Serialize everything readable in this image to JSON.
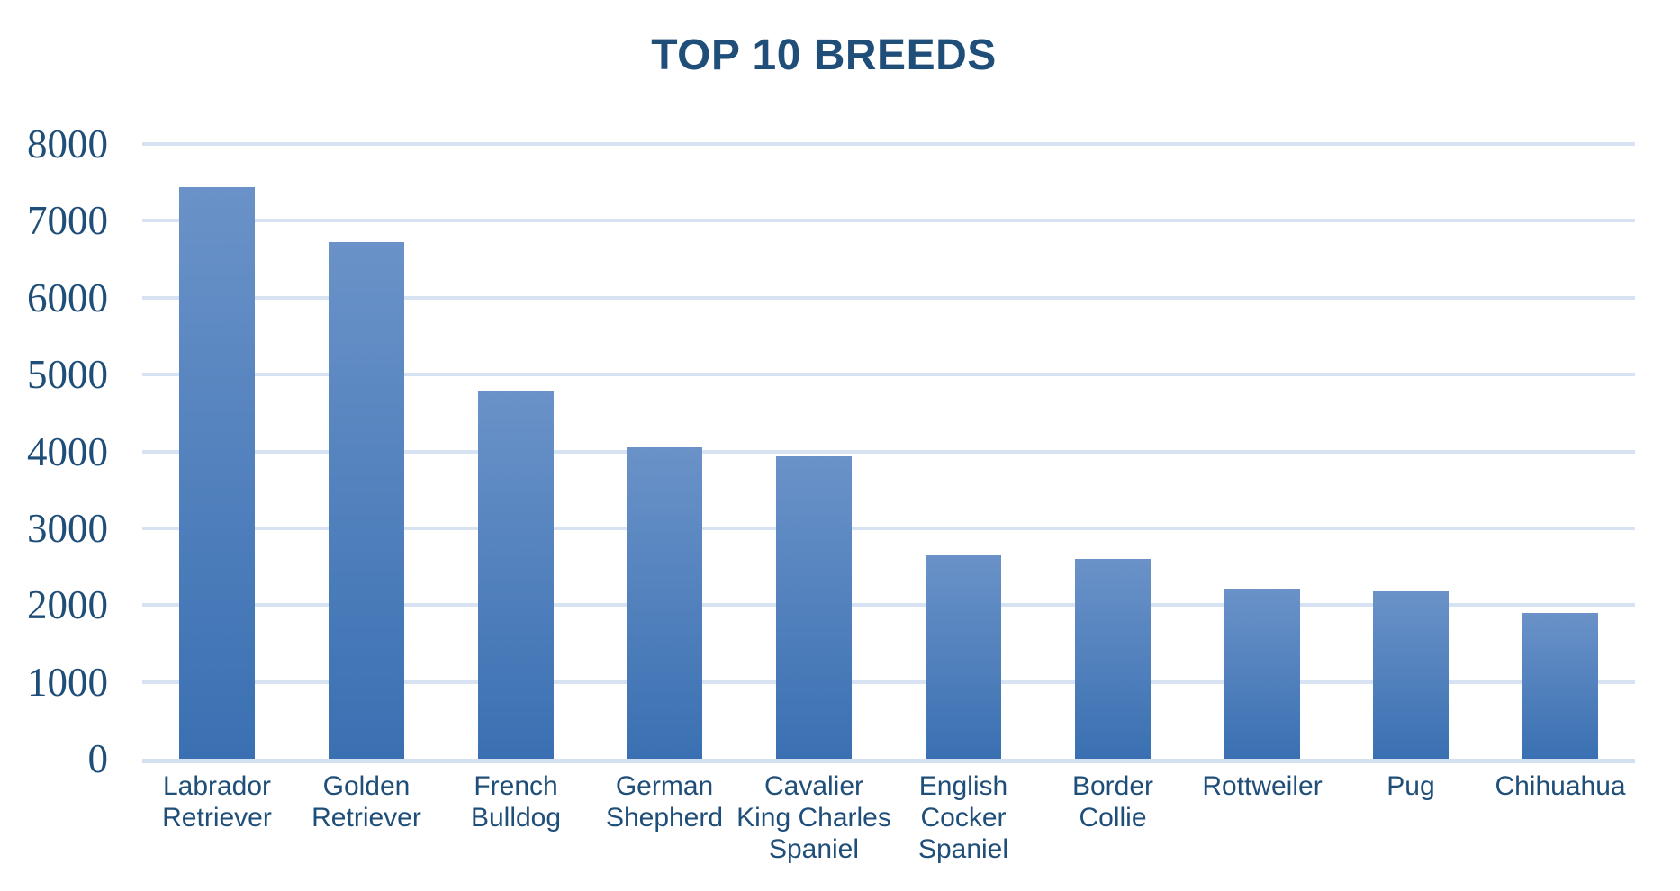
{
  "chart_data": {
    "type": "bar",
    "title": "TOP 10 BREEDS",
    "categories": [
      "Labrador Retriever",
      "Golden Retriever",
      "French Bulldog",
      "German Shepherd",
      "Cavalier King Charles Spaniel",
      "English Cocker Spaniel",
      "Border Collie",
      "Rottweiler",
      "Pug",
      "Chihuahua"
    ],
    "category_lines": [
      [
        "Labrador",
        "Retriever"
      ],
      [
        "Golden",
        "Retriever"
      ],
      [
        "French",
        "Bulldog"
      ],
      [
        "German",
        "Shepherd"
      ],
      [
        "Cavalier",
        "King Charles",
        "Spaniel"
      ],
      [
        "English",
        "Cocker",
        "Spaniel"
      ],
      [
        "Border",
        "Collie"
      ],
      [
        "Rottweiler"
      ],
      [
        "Pug"
      ],
      [
        "Chihuahua"
      ]
    ],
    "values": [
      7440,
      6720,
      4790,
      4050,
      3930,
      2650,
      2600,
      2210,
      2180,
      1900
    ],
    "xlabel": "",
    "ylabel": "",
    "ylim": [
      0,
      8000
    ],
    "yticks": [
      0,
      1000,
      2000,
      3000,
      4000,
      5000,
      6000,
      7000,
      8000
    ],
    "grid": "horizontal",
    "legend": "none",
    "colors": {
      "title_text": "#1F4E79",
      "axis_text": "#1F4E79",
      "bar_top": "#6A92C8",
      "bar_bottom": "#3A70B2",
      "gridline": "#D7E2F2",
      "baseline": "#D2E0F0",
      "background": "#FFFFFF"
    }
  }
}
